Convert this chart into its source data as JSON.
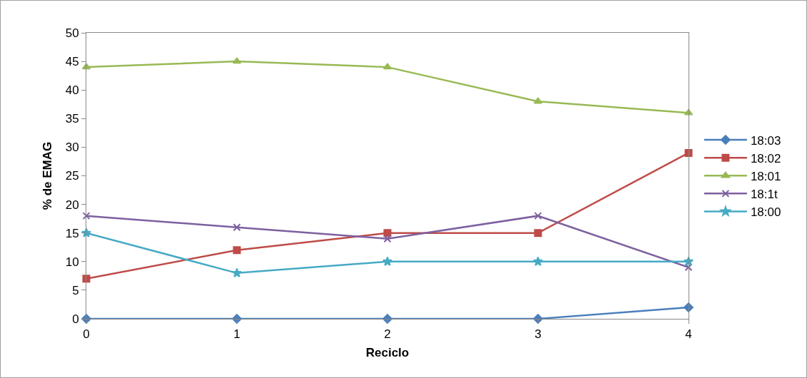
{
  "chart_data": {
    "type": "line",
    "xlabel": "Reciclo",
    "ylabel": "% de EMAG",
    "x": [
      0,
      1,
      2,
      3,
      4
    ],
    "xlim": [
      0,
      4
    ],
    "xticks": [
      0,
      1,
      2,
      3,
      4
    ],
    "ylim": [
      0,
      50
    ],
    "yticks": [
      0,
      5,
      10,
      15,
      20,
      25,
      30,
      35,
      40,
      45,
      50
    ],
    "grid": false,
    "legend": "right",
    "line_style": "solid",
    "series": [
      {
        "name": "18:03",
        "color": "#4a7ebb",
        "marker": "diamond",
        "values": [
          0,
          0,
          0,
          0,
          2
        ]
      },
      {
        "name": "18:02",
        "color": "#be4b48",
        "marker": "square",
        "values": [
          7,
          12,
          15,
          15,
          29
        ]
      },
      {
        "name": "18:01",
        "color": "#98b954",
        "marker": "triangle",
        "values": [
          44,
          45,
          44,
          38,
          36
        ]
      },
      {
        "name": "18:1t",
        "color": "#7d60a0",
        "marker": "cross",
        "values": [
          18,
          16,
          14,
          18,
          9
        ]
      },
      {
        "name": "18:00",
        "color": "#46aac5",
        "marker": "star",
        "values": [
          15,
          8,
          10,
          10,
          10
        ]
      }
    ]
  }
}
